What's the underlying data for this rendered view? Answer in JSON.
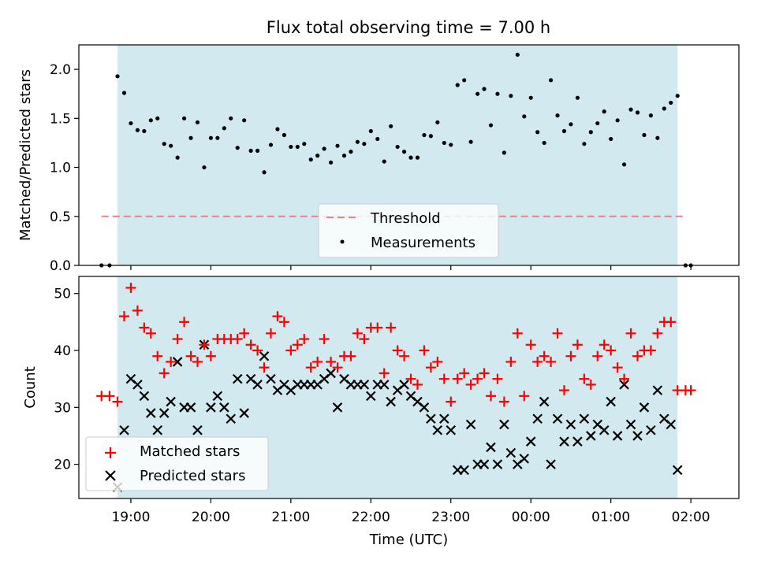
{
  "title": "Flux total observing time = 7.00 h",
  "chart_data": [
    {
      "type": "scatter",
      "panel": "top",
      "ylabel": "Matched/Predicted stars",
      "ylim": [
        0,
        2.25
      ],
      "yticks": [
        "0.0",
        "0.5",
        "1.0",
        "1.5",
        "2.0"
      ],
      "xlim_hours": [
        18.35,
        26.6
      ],
      "observing_window": [
        "18:50",
        "01:50"
      ],
      "threshold": {
        "name": "Threshold",
        "value": 0.5,
        "color": "#f08080",
        "style": "dashed"
      },
      "series": [
        {
          "name": "Measurements",
          "color": "#000000",
          "points": [
            [
              "18:38",
              0.0
            ],
            [
              "18:44",
              0.0
            ],
            [
              "18:50",
              1.93
            ],
            [
              "18:55",
              1.76
            ],
            [
              "19:00",
              1.45
            ],
            [
              "19:05",
              1.38
            ],
            [
              "19:10",
              1.37
            ],
            [
              "19:15",
              1.48
            ],
            [
              "19:20",
              1.5
            ],
            [
              "19:25",
              1.24
            ],
            [
              "19:30",
              1.22
            ],
            [
              "19:35",
              1.1
            ],
            [
              "19:40",
              1.5
            ],
            [
              "19:45",
              1.3
            ],
            [
              "19:50",
              1.46
            ],
            [
              "19:55",
              1.0
            ],
            [
              "20:00",
              1.3
            ],
            [
              "20:05",
              1.3
            ],
            [
              "20:10",
              1.4
            ],
            [
              "20:15",
              1.5
            ],
            [
              "20:20",
              1.2
            ],
            [
              "20:25",
              1.48
            ],
            [
              "20:30",
              1.17
            ],
            [
              "20:35",
              1.17
            ],
            [
              "20:40",
              0.95
            ],
            [
              "20:45",
              1.23
            ],
            [
              "20:50",
              1.39
            ],
            [
              "20:55",
              1.33
            ],
            [
              "21:00",
              1.21
            ],
            [
              "21:05",
              1.21
            ],
            [
              "21:10",
              1.24
            ],
            [
              "21:15",
              1.08
            ],
            [
              "21:20",
              1.12
            ],
            [
              "21:25",
              1.19
            ],
            [
              "21:30",
              1.05
            ],
            [
              "21:35",
              1.22
            ],
            [
              "21:40",
              1.12
            ],
            [
              "21:45",
              1.16
            ],
            [
              "21:50",
              1.26
            ],
            [
              "21:55",
              1.24
            ],
            [
              "22:00",
              1.37
            ],
            [
              "22:05",
              1.29
            ],
            [
              "22:10",
              1.06
            ],
            [
              "22:15",
              1.42
            ],
            [
              "22:20",
              1.21
            ],
            [
              "22:25",
              1.16
            ],
            [
              "22:30",
              1.1
            ],
            [
              "22:35",
              1.1
            ],
            [
              "22:40",
              1.33
            ],
            [
              "22:45",
              1.32
            ],
            [
              "22:50",
              1.46
            ],
            [
              "22:55",
              1.25
            ],
            [
              "23:00",
              1.23
            ],
            [
              "23:05",
              1.84
            ],
            [
              "23:10",
              1.89
            ],
            [
              "23:15",
              1.26
            ],
            [
              "23:20",
              1.75
            ],
            [
              "23:25",
              1.8
            ],
            [
              "23:30",
              1.43
            ],
            [
              "23:35",
              1.75
            ],
            [
              "23:40",
              1.15
            ],
            [
              "23:45",
              1.73
            ],
            [
              "23:50",
              2.15
            ],
            [
              "23:55",
              1.52
            ],
            [
              "00:00",
              1.71
            ],
            [
              "00:05",
              1.36
            ],
            [
              "00:10",
              1.25
            ],
            [
              "00:15",
              1.89
            ],
            [
              "00:20",
              1.53
            ],
            [
              "00:25",
              1.37
            ],
            [
              "00:30",
              1.44
            ],
            [
              "00:35",
              1.71
            ],
            [
              "00:40",
              1.24
            ],
            [
              "00:45",
              1.36
            ],
            [
              "00:50",
              1.45
            ],
            [
              "00:55",
              1.57
            ],
            [
              "01:00",
              1.29
            ],
            [
              "01:05",
              1.48
            ],
            [
              "01:10",
              1.03
            ],
            [
              "01:15",
              1.59
            ],
            [
              "01:20",
              1.56
            ],
            [
              "01:25",
              1.33
            ],
            [
              "01:30",
              1.53
            ],
            [
              "01:35",
              1.3
            ],
            [
              "01:40",
              1.6
            ],
            [
              "01:45",
              1.66
            ],
            [
              "01:50",
              1.73
            ],
            [
              "01:56",
              0.0
            ],
            [
              "02:00",
              0.0
            ]
          ]
        }
      ]
    },
    {
      "type": "scatter",
      "panel": "bottom",
      "ylabel": "Count",
      "xlabel": "Time (UTC)",
      "ylim": [
        14,
        53
      ],
      "yticks": [
        "20",
        "30",
        "40",
        "50"
      ],
      "xlim_hours": [
        18.35,
        26.6
      ],
      "xticks": [
        "19:00",
        "20:00",
        "21:00",
        "22:00",
        "23:00",
        "00:00",
        "01:00",
        "02:00"
      ],
      "observing_window": [
        "18:50",
        "01:50"
      ],
      "series": [
        {
          "name": "Matched stars",
          "marker": "plus",
          "color": "#ff0000",
          "points": [
            [
              "18:38",
              32
            ],
            [
              "18:44",
              32
            ],
            [
              "18:50",
              31
            ],
            [
              "18:55",
              46
            ],
            [
              "19:00",
              51
            ],
            [
              "19:05",
              47
            ],
            [
              "19:10",
              44
            ],
            [
              "19:15",
              43
            ],
            [
              "19:20",
              39
            ],
            [
              "19:25",
              36
            ],
            [
              "19:30",
              38
            ],
            [
              "19:35",
              42
            ],
            [
              "19:40",
              45
            ],
            [
              "19:45",
              39
            ],
            [
              "19:50",
              38
            ],
            [
              "19:55",
              41
            ],
            [
              "20:00",
              39
            ],
            [
              "20:05",
              42
            ],
            [
              "20:10",
              42
            ],
            [
              "20:15",
              42
            ],
            [
              "20:20",
              42
            ],
            [
              "20:25",
              43
            ],
            [
              "20:30",
              41
            ],
            [
              "20:35",
              40
            ],
            [
              "20:40",
              37
            ],
            [
              "20:45",
              43
            ],
            [
              "20:50",
              46
            ],
            [
              "20:55",
              45
            ],
            [
              "21:00",
              40
            ],
            [
              "21:05",
              41
            ],
            [
              "21:10",
              42
            ],
            [
              "21:15",
              37
            ],
            [
              "21:20",
              38
            ],
            [
              "21:25",
              42
            ],
            [
              "21:30",
              38
            ],
            [
              "21:35",
              37
            ],
            [
              "21:40",
              39
            ],
            [
              "21:45",
              39
            ],
            [
              "21:50",
              43
            ],
            [
              "21:55",
              42
            ],
            [
              "22:00",
              44
            ],
            [
              "22:05",
              44
            ],
            [
              "22:10",
              36
            ],
            [
              "22:15",
              44
            ],
            [
              "22:20",
              40
            ],
            [
              "22:25",
              39
            ],
            [
              "22:30",
              35
            ],
            [
              "22:35",
              34
            ],
            [
              "22:40",
              40
            ],
            [
              "22:45",
              37
            ],
            [
              "22:50",
              38
            ],
            [
              "22:55",
              35
            ],
            [
              "23:00",
              31
            ],
            [
              "23:05",
              35
            ],
            [
              "23:10",
              36
            ],
            [
              "23:15",
              34
            ],
            [
              "23:20",
              35
            ],
            [
              "23:25",
              36
            ],
            [
              "23:30",
              32
            ],
            [
              "23:35",
              35
            ],
            [
              "23:40",
              31
            ],
            [
              "23:45",
              38
            ],
            [
              "23:50",
              43
            ],
            [
              "23:55",
              32
            ],
            [
              "00:00",
              41
            ],
            [
              "00:05",
              38
            ],
            [
              "00:10",
              39
            ],
            [
              "00:15",
              38
            ],
            [
              "00:20",
              43
            ],
            [
              "00:25",
              33
            ],
            [
              "00:30",
              39
            ],
            [
              "00:35",
              41
            ],
            [
              "00:40",
              35
            ],
            [
              "00:45",
              34
            ],
            [
              "00:50",
              39
            ],
            [
              "00:55",
              41
            ],
            [
              "01:00",
              40
            ],
            [
              "01:05",
              37
            ],
            [
              "01:10",
              35
            ],
            [
              "01:15",
              43
            ],
            [
              "01:20",
              39
            ],
            [
              "01:25",
              40
            ],
            [
              "01:30",
              40
            ],
            [
              "01:35",
              43
            ],
            [
              "01:40",
              45
            ],
            [
              "01:45",
              45
            ],
            [
              "01:50",
              33
            ],
            [
              "01:56",
              33
            ],
            [
              "02:00",
              33
            ]
          ]
        },
        {
          "name": "Predicted stars",
          "marker": "x",
          "color": "#000000",
          "points": [
            [
              "18:50",
              16
            ],
            [
              "18:55",
              26
            ],
            [
              "19:00",
              35
            ],
            [
              "19:05",
              34
            ],
            [
              "19:10",
              32
            ],
            [
              "19:15",
              29
            ],
            [
              "19:20",
              26
            ],
            [
              "19:25",
              29
            ],
            [
              "19:30",
              31
            ],
            [
              "19:35",
              38
            ],
            [
              "19:40",
              30
            ],
            [
              "19:45",
              30
            ],
            [
              "19:50",
              26
            ],
            [
              "19:55",
              41
            ],
            [
              "20:00",
              30
            ],
            [
              "20:05",
              32
            ],
            [
              "20:10",
              30
            ],
            [
              "20:15",
              28
            ],
            [
              "20:20",
              35
            ],
            [
              "20:25",
              29
            ],
            [
              "20:30",
              35
            ],
            [
              "20:35",
              34
            ],
            [
              "20:40",
              39
            ],
            [
              "20:45",
              35
            ],
            [
              "20:50",
              33
            ],
            [
              "20:55",
              34
            ],
            [
              "21:00",
              33
            ],
            [
              "21:05",
              34
            ],
            [
              "21:10",
              34
            ],
            [
              "21:15",
              34
            ],
            [
              "21:20",
              34
            ],
            [
              "21:25",
              35
            ],
            [
              "21:30",
              36
            ],
            [
              "21:35",
              30
            ],
            [
              "21:40",
              35
            ],
            [
              "21:45",
              34
            ],
            [
              "21:50",
              34
            ],
            [
              "21:55",
              34
            ],
            [
              "22:00",
              32
            ],
            [
              "22:05",
              34
            ],
            [
              "22:10",
              34
            ],
            [
              "22:15",
              31
            ],
            [
              "22:20",
              33
            ],
            [
              "22:25",
              34
            ],
            [
              "22:30",
              32
            ],
            [
              "22:35",
              31
            ],
            [
              "22:40",
              30
            ],
            [
              "22:45",
              28
            ],
            [
              "22:50",
              26
            ],
            [
              "22:55",
              28
            ],
            [
              "23:00",
              26
            ],
            [
              "23:05",
              19
            ],
            [
              "23:10",
              19
            ],
            [
              "23:15",
              27
            ],
            [
              "23:20",
              20
            ],
            [
              "23:25",
              20
            ],
            [
              "23:30",
              23
            ],
            [
              "23:35",
              20
            ],
            [
              "23:40",
              27
            ],
            [
              "23:45",
              22
            ],
            [
              "23:50",
              20
            ],
            [
              "23:55",
              21
            ],
            [
              "00:00",
              24
            ],
            [
              "00:05",
              28
            ],
            [
              "00:10",
              31
            ],
            [
              "00:15",
              20
            ],
            [
              "00:20",
              28
            ],
            [
              "00:25",
              24
            ],
            [
              "00:30",
              27
            ],
            [
              "00:35",
              24
            ],
            [
              "00:40",
              28
            ],
            [
              "00:45",
              25
            ],
            [
              "00:50",
              27
            ],
            [
              "00:55",
              26
            ],
            [
              "01:00",
              31
            ],
            [
              "01:05",
              25
            ],
            [
              "01:10",
              34
            ],
            [
              "01:15",
              27
            ],
            [
              "01:20",
              25
            ],
            [
              "01:25",
              30
            ],
            [
              "01:30",
              26
            ],
            [
              "01:35",
              33
            ],
            [
              "01:40",
              28
            ],
            [
              "01:45",
              27
            ],
            [
              "01:50",
              19
            ]
          ]
        }
      ]
    }
  ],
  "colors": {
    "window_fill": "#d3e9f0",
    "axes": "#000000"
  }
}
